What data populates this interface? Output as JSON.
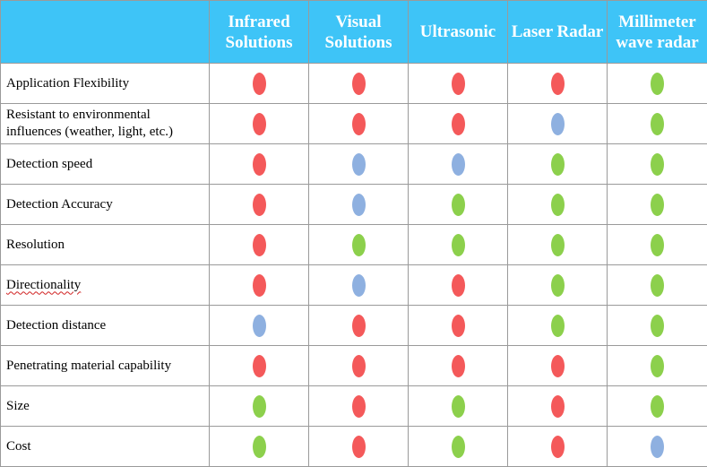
{
  "table": {
    "columns": [
      {
        "label": "Infrared Solutions"
      },
      {
        "label": "Visual Solutions"
      },
      {
        "label": "Ultrasonic"
      },
      {
        "label": "Laser Radar"
      },
      {
        "label": "Millimeter wave radar"
      }
    ],
    "colors": {
      "red": "#f4595a",
      "green": "#8cd04c",
      "blue": "#8eb0e0",
      "header_bg": "#3ec4f7",
      "header_text": "#ffffff"
    },
    "rows": [
      {
        "label": "Application Flexibility",
        "ratings": [
          "red",
          "red",
          "red",
          "red",
          "green"
        ]
      },
      {
        "label": "Resistant to environmental influences (weather, light, etc.)",
        "ratings": [
          "red",
          "red",
          "red",
          "blue",
          "green"
        ]
      },
      {
        "label": "Detection speed",
        "ratings": [
          "red",
          "blue",
          "blue",
          "green",
          "green"
        ]
      },
      {
        "label": "Detection Accuracy",
        "ratings": [
          "red",
          "blue",
          "green",
          "green",
          "green"
        ]
      },
      {
        "label": "Resolution",
        "ratings": [
          "red",
          "green",
          "green",
          "green",
          "green"
        ]
      },
      {
        "label": "Directionality",
        "ratings": [
          "red",
          "blue",
          "red",
          "green",
          "green"
        ]
      },
      {
        "label": "Detection distance",
        "ratings": [
          "blue",
          "red",
          "red",
          "green",
          "green"
        ]
      },
      {
        "label": "Penetrating material capability",
        "ratings": [
          "red",
          "red",
          "red",
          "red",
          "green"
        ]
      },
      {
        "label": "Size",
        "ratings": [
          "green",
          "red",
          "green",
          "red",
          "green"
        ]
      },
      {
        "label": "Cost",
        "ratings": [
          "green",
          "red",
          "green",
          "red",
          "blue"
        ]
      }
    ]
  }
}
